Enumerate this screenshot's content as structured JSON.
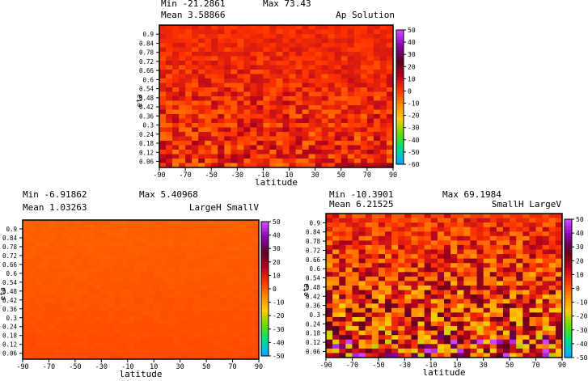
{
  "chart_data": [
    {
      "type": "heatmap",
      "title": "Ap Solution",
      "min_label": "Min",
      "min_value": "-21.2861",
      "max_label": "Max",
      "max_value": "73.43",
      "mean_label": "Mean",
      "mean_value": "3.58866",
      "xlabel": "latitude",
      "ylabel": "eta",
      "x_range": [
        -90,
        90
      ],
      "y_range": [
        0.02,
        0.96
      ],
      "x_ticks": [
        "-90",
        "-70",
        "-50",
        "-30",
        "-10",
        "10",
        "30",
        "50",
        "70",
        "90"
      ],
      "y_ticks": [
        "0.9",
        "0.84",
        "0.78",
        "0.72",
        "0.66",
        "0.6",
        "0.54",
        "0.48",
        "0.42",
        "0.36",
        "0.3",
        "0.24",
        "0.18",
        "0.12",
        "0.06"
      ],
      "colorbar_ticks": [
        "50",
        "40",
        "30",
        "20",
        "10",
        "0",
        "-10",
        "-20",
        "-30",
        "-40",
        "-50",
        "-60"
      ],
      "colorbar_range": [
        -60,
        50
      ],
      "typical_value": 3,
      "variability": "moderate"
    },
    {
      "type": "heatmap",
      "title": "LargeH SmallV",
      "min_label": "Min",
      "min_value": "-6.91862",
      "max_label": "Max",
      "max_value": "5.40968",
      "mean_label": "Mean",
      "mean_value": "1.03263",
      "xlabel": "latitude",
      "ylabel": "eta",
      "x_range": [
        -90,
        90
      ],
      "y_range": [
        0.02,
        0.96
      ],
      "x_ticks": [
        "-90",
        "-70",
        "-50",
        "-30",
        "-10",
        "10",
        "30",
        "50",
        "70",
        "90"
      ],
      "y_ticks": [
        "0.9",
        "0.84",
        "0.78",
        "0.72",
        "0.66",
        "0.6",
        "0.54",
        "0.48",
        "0.42",
        "0.36",
        "0.3",
        "0.24",
        "0.18",
        "0.12",
        "0.06"
      ],
      "colorbar_ticks": [
        "50",
        "40",
        "30",
        "20",
        "10",
        "0",
        "-10",
        "-20",
        "-30",
        "-40",
        "-50"
      ],
      "colorbar_range": [
        -50,
        50
      ],
      "typical_value": 1,
      "variability": "low"
    },
    {
      "type": "heatmap",
      "title": "SmallH LargeV",
      "min_label": "Min",
      "min_value": "-10.3901",
      "max_label": "Max",
      "max_value": "69.1984",
      "mean_label": "Mean",
      "mean_value": "6.21525",
      "xlabel": "latitude",
      "ylabel": "eta",
      "x_range": [
        -90,
        90
      ],
      "y_range": [
        0.02,
        0.96
      ],
      "x_ticks": [
        "-90",
        "-70",
        "-50",
        "-30",
        "-10",
        "10",
        "30",
        "50",
        "70",
        "90"
      ],
      "y_ticks": [
        "0.9",
        "0.84",
        "0.78",
        "0.72",
        "0.66",
        "0.6",
        "0.54",
        "0.48",
        "0.42",
        "0.36",
        "0.3",
        "0.24",
        "0.18",
        "0.12",
        "0.06"
      ],
      "colorbar_ticks": [
        "50",
        "40",
        "30",
        "20",
        "10",
        "0",
        "-10",
        "-20",
        "-30",
        "-40",
        "-50"
      ],
      "colorbar_range": [
        -50,
        50
      ],
      "typical_value": 6,
      "variability": "high"
    }
  ],
  "colormap": {
    "name": "rainbow-white",
    "stops": [
      "#00aaff",
      "#00dd88",
      "#66dd00",
      "#ffcc00",
      "#ff8800",
      "#ff3300",
      "#b00020",
      "#5a0020",
      "#8800aa",
      "#cc44ff"
    ]
  }
}
